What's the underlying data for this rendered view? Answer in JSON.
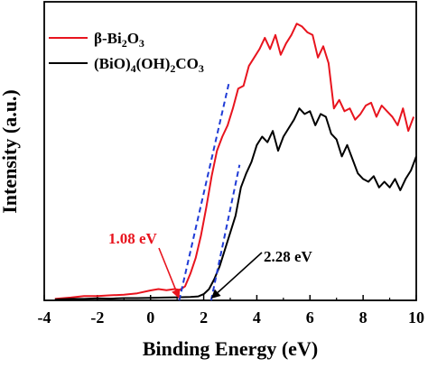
{
  "chart_data": {
    "type": "line",
    "xlabel": "Binding Energy (eV)",
    "ylabel": "Intensity (a.u.)",
    "xlim": [
      -4,
      10
    ],
    "xticks": [
      -4,
      -2,
      0,
      2,
      4,
      6,
      8,
      10
    ],
    "ylim": [
      0,
      100
    ],
    "legend_position": "top-left",
    "series": [
      {
        "name": "β-Bi2O3",
        "color": "#e8141e",
        "x": [
          -3.6,
          -3.0,
          -2.5,
          -2.0,
          -1.5,
          -1.0,
          -0.5,
          0.0,
          0.3,
          0.6,
          0.9,
          1.1,
          1.3,
          1.5,
          1.7,
          1.9,
          2.1,
          2.3,
          2.5,
          2.7,
          2.9,
          3.1,
          3.3,
          3.5,
          3.7,
          3.9,
          4.1,
          4.3,
          4.5,
          4.7,
          4.9,
          5.1,
          5.3,
          5.5,
          5.7,
          5.9,
          6.1,
          6.3,
          6.5,
          6.7,
          6.9,
          7.1,
          7.3,
          7.5,
          7.7,
          7.9,
          8.1,
          8.3,
          8.5,
          8.7,
          8.9,
          9.1,
          9.3,
          9.5,
          9.7,
          9.9
        ],
        "values": [
          0.5,
          1.0,
          1.5,
          1.5,
          1.8,
          2.0,
          2.5,
          3.5,
          4.0,
          3.6,
          4.0,
          3.7,
          5.0,
          9.5,
          15.0,
          23.0,
          33.0,
          44.0,
          53.0,
          58.0,
          62.0,
          68.0,
          75.0,
          76.0,
          83.0,
          86.0,
          89.0,
          93.0,
          89.0,
          94.0,
          87.0,
          91.0,
          94.0,
          98.0,
          97.0,
          95.0,
          94.0,
          86.0,
          90.0,
          84.0,
          68.0,
          71.0,
          67.0,
          68.0,
          64.0,
          66.0,
          69.0,
          70.0,
          65.0,
          69.0,
          67.0,
          65.0,
          62.0,
          68.0,
          60.0,
          65.0
        ]
      },
      {
        "name": "(BiO)4(OH)2CO3",
        "color": "#000000",
        "x": [
          -3.6,
          -3.0,
          -2.5,
          -2.0,
          -1.5,
          -1.0,
          -0.5,
          0.0,
          0.5,
          1.0,
          1.5,
          1.8,
          2.0,
          2.2,
          2.4,
          2.6,
          2.8,
          3.0,
          3.2,
          3.4,
          3.6,
          3.8,
          4.0,
          4.2,
          4.4,
          4.6,
          4.8,
          5.0,
          5.2,
          5.4,
          5.6,
          5.8,
          6.0,
          6.2,
          6.4,
          6.6,
          6.8,
          7.0,
          7.2,
          7.4,
          7.6,
          7.8,
          8.0,
          8.2,
          8.4,
          8.6,
          8.8,
          9.0,
          9.2,
          9.4,
          9.6,
          9.8,
          10.0
        ],
        "values": [
          0.3,
          0.5,
          0.5,
          0.7,
          0.6,
          0.8,
          0.8,
          0.9,
          1.0,
          1.1,
          1.2,
          1.4,
          2.2,
          4.0,
          7.5,
          12.0,
          18.0,
          24.0,
          30.0,
          40.0,
          45.0,
          49.0,
          55.0,
          58.0,
          56.0,
          60.0,
          53.0,
          58.0,
          61.0,
          64.0,
          68.0,
          66.0,
          67.0,
          62.0,
          66.0,
          65.0,
          59.0,
          57.0,
          51.0,
          55.0,
          50.0,
          45.0,
          43.0,
          42.0,
          44.0,
          40.0,
          42.0,
          40.0,
          43.0,
          39.0,
          43.0,
          46.0,
          51.0
        ]
      }
    ],
    "tangents": [
      {
        "color": "#1f3bd6",
        "x": [
          1.08,
          2.95
        ],
        "values": [
          0,
          77
        ]
      },
      {
        "color": "#1f3bd6",
        "x": [
          2.28,
          3.35
        ],
        "values": [
          0,
          48
        ]
      }
    ],
    "annotations": [
      {
        "text": "1.08 eV",
        "color": "#e8141e",
        "target_x": 1.08
      },
      {
        "text": "2.28 eV",
        "color": "#000000",
        "target_x": 2.28
      }
    ]
  }
}
